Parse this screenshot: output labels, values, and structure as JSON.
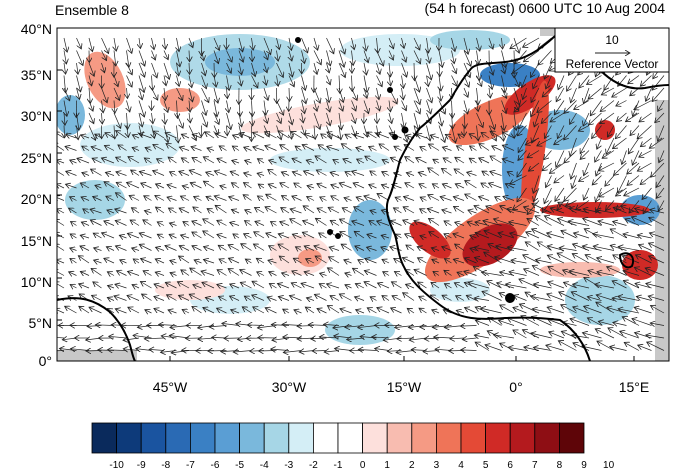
{
  "header": {
    "left_title": "Ensemble 8",
    "right_title": "(54 h forecast) 0600 UTC 10 Aug 2004"
  },
  "map": {
    "extent": {
      "lon_min": -58,
      "lon_max": 19,
      "lat_min": 0,
      "lat_max": 40
    },
    "lat_ticks": [
      "0°",
      "5°N",
      "10°N",
      "15°N",
      "20°N",
      "25°N",
      "30°N",
      "35°N",
      "40°N"
    ],
    "lon_ticks": [
      "45°W",
      "30°W",
      "15°W",
      "0°",
      "15°E"
    ],
    "reference_vector": {
      "magnitude_label": "10",
      "caption": "Reference Vector"
    },
    "colors": {
      "coast": "#000000",
      "land_missing": "#c8c8c8",
      "vector": "#222222"
    }
  },
  "colorbar": {
    "labels": [
      "-10",
      "-9",
      "-8",
      "-7",
      "-6",
      "-5",
      "-4",
      "-3",
      "-2",
      "-1",
      "0",
      "1",
      "2",
      "3",
      "4",
      "5",
      "6",
      "7",
      "8",
      "9",
      "10"
    ],
    "colors": [
      "#0a2a5c",
      "#0d3a7a",
      "#1a54a0",
      "#2a6ab4",
      "#3a80c4",
      "#5a9ed4",
      "#7ab8dc",
      "#a6d6e6",
      "#d4eef6",
      "#ffffff",
      "#ffffff",
      "#fde0dc",
      "#f8bcb0",
      "#f59a84",
      "#ef7458",
      "#e44a36",
      "#d02a26",
      "#b41a1e",
      "#8e0e14",
      "#5e0508"
    ]
  }
}
